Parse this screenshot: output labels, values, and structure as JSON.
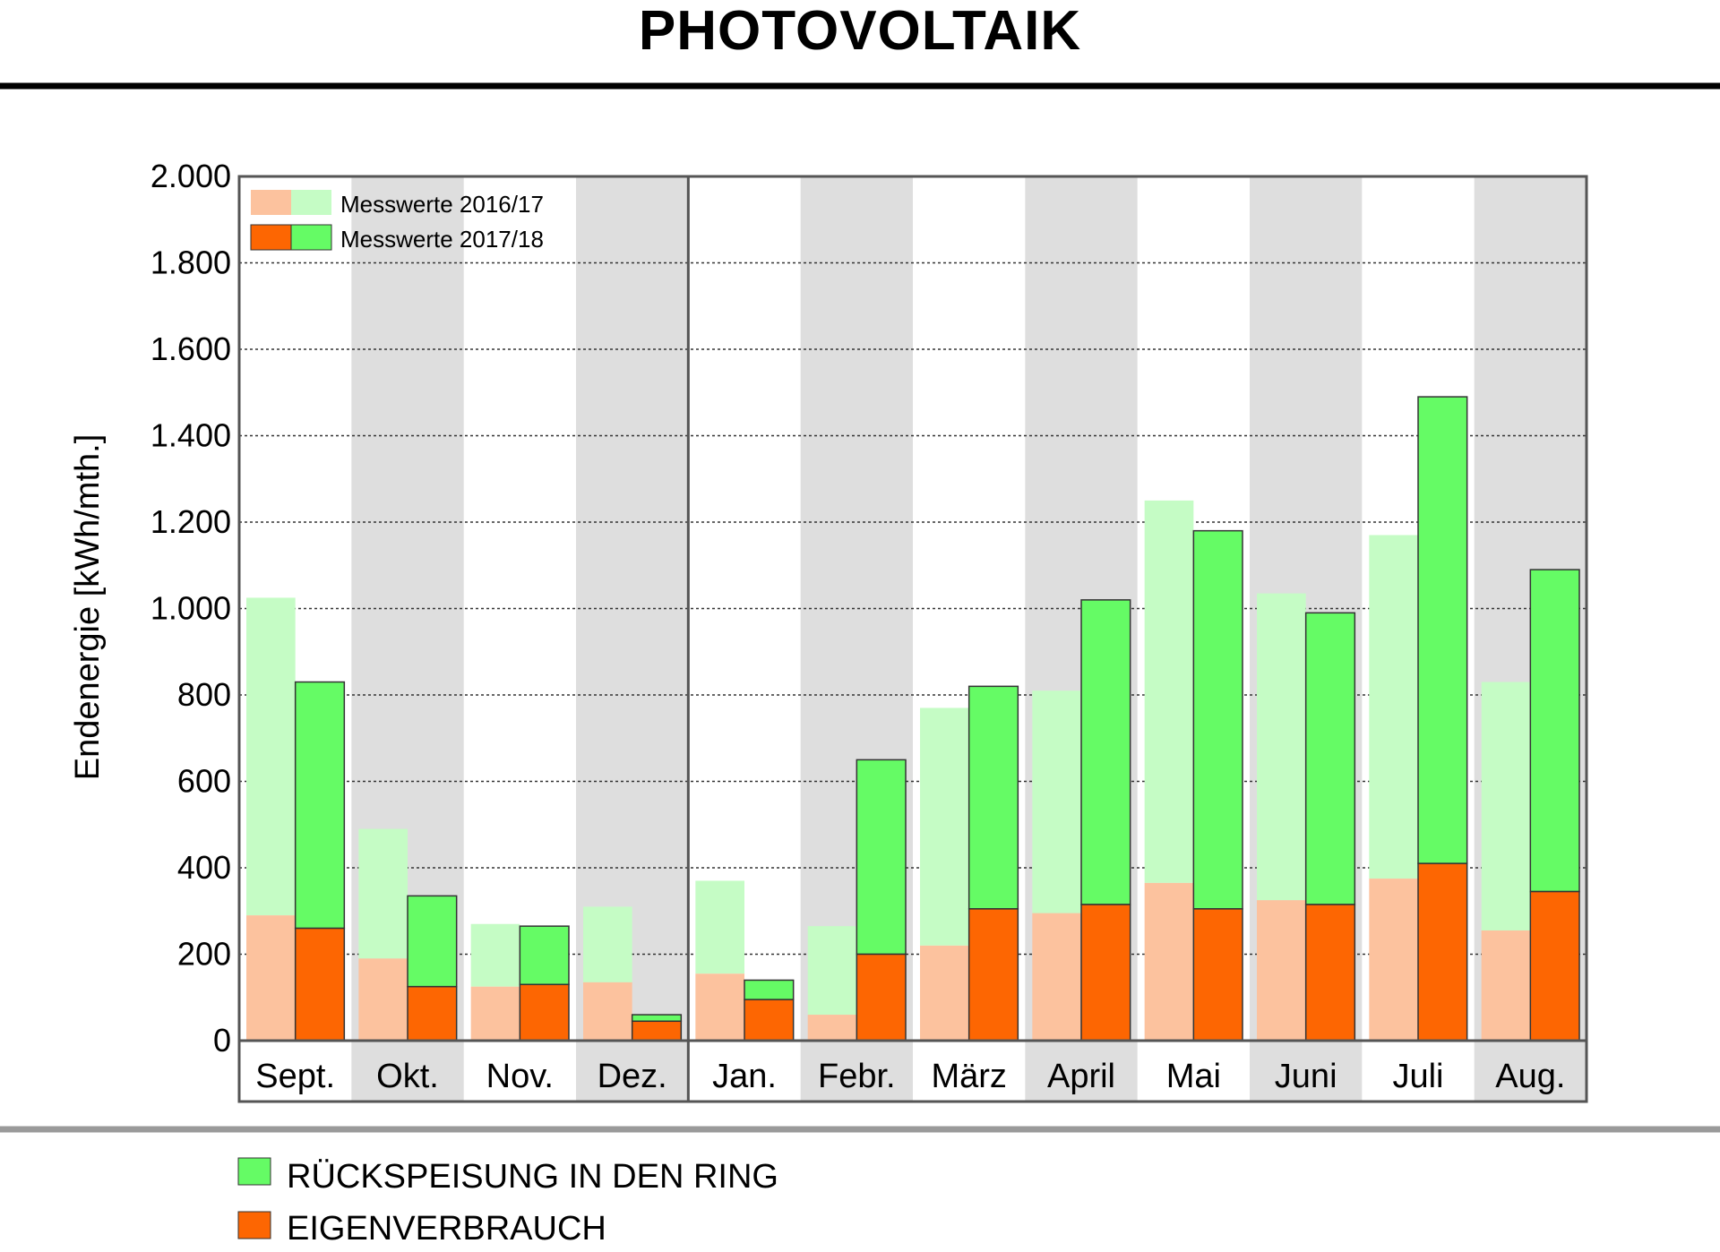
{
  "title": "PHOTOVOLTAIK",
  "colors": {
    "eigen_2016": "#fcc29e",
    "rueck_2016": "#c5fcc5",
    "eigen_2017": "#fd6602",
    "rueck_2017": "#65fb65",
    "band": "#dedede"
  },
  "legend": {
    "series_2016": "Messwerte 2016/17",
    "series_2017": "Messwerte 2017/18",
    "rueckspeisung": "RÜCKSPEISUNG IN DEN RING",
    "eigenverbrauch": "EIGENVERBRAUCH"
  },
  "chart_data": {
    "type": "bar",
    "title": "PHOTOVOLTAIK",
    "xlabel": "",
    "ylabel": "Endenergie [kWh/mth.]",
    "ylim": [
      0,
      2000
    ],
    "yticks": [
      0,
      200,
      400,
      600,
      800,
      1000,
      1200,
      1400,
      1600,
      1800,
      2000
    ],
    "ytick_labels": [
      "0",
      "200",
      "400",
      "600",
      "800",
      "1.000",
      "1.200",
      "1.400",
      "1.600",
      "1.800",
      "2.000"
    ],
    "grid": true,
    "legend_position": "top-left",
    "categories": [
      "Sept.",
      "Okt.",
      "Nov.",
      "Dez.",
      "Jan.",
      "Febr.",
      "März",
      "April",
      "Mai",
      "Juni",
      "Juli",
      "Aug."
    ],
    "series": [
      {
        "name": "Messwerte 2016/17",
        "eigenverbrauch": [
          290,
          190,
          125,
          135,
          155,
          60,
          220,
          295,
          365,
          325,
          375,
          255
        ],
        "total": [
          1025,
          490,
          270,
          310,
          370,
          265,
          770,
          810,
          1250,
          1035,
          1170,
          830
        ]
      },
      {
        "name": "Messwerte 2017/18",
        "eigenverbrauch": [
          260,
          125,
          130,
          45,
          95,
          200,
          305,
          315,
          305,
          315,
          410,
          345
        ],
        "total": [
          830,
          335,
          265,
          60,
          140,
          650,
          820,
          1020,
          1180,
          990,
          1490,
          1090
        ]
      }
    ]
  }
}
